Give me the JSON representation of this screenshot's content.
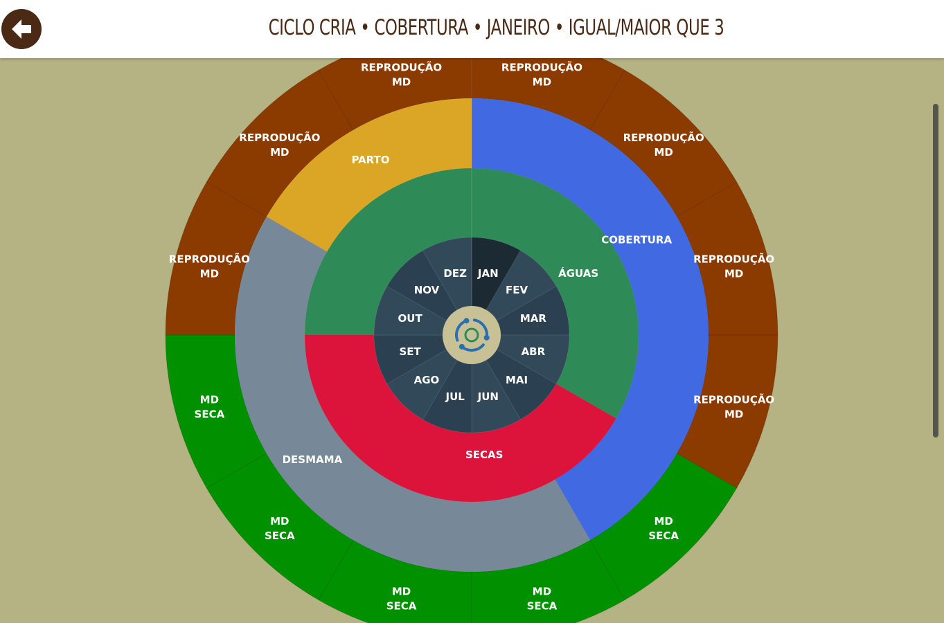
{
  "header": {
    "title": "CICLO CRIA • COBERTURA • JANEIRO • IGUAL/MAIOR QUE 3",
    "back_icon": "arrow-left-icon"
  },
  "center_icon": "cycle-icon",
  "colors": {
    "background": "#b5b283",
    "header_bg": "#ffffff",
    "title": "#4a2a15",
    "reproducao": "#8b3a00",
    "md_seca": "#009000",
    "parto": "#dba526",
    "cobertura": "#4169e1",
    "desmama": "#778899",
    "aguas": "#2e8b57",
    "secas": "#dc143c",
    "months": "#2f4858",
    "month_selected": "#1c2a33",
    "center": "#c8c196"
  },
  "outer_ring": [
    {
      "line1": "REPRODUÇÃO",
      "line2": "MD",
      "type": "reproducao"
    },
    {
      "line1": "REPRODUÇÃO",
      "line2": "MD",
      "type": "reproducao"
    },
    {
      "line1": "REPRODUÇÃO",
      "line2": "MD",
      "type": "reproducao"
    },
    {
      "line1": "REPRODUÇÃO",
      "line2": "MD",
      "type": "reproducao"
    },
    {
      "line1": "MD",
      "line2": "SECA",
      "type": "md_seca"
    },
    {
      "line1": "MD",
      "line2": "SECA",
      "type": "md_seca"
    },
    {
      "line1": "MD",
      "line2": "SECA",
      "type": "md_seca"
    },
    {
      "line1": "MD",
      "line2": "SECA",
      "type": "md_seca"
    },
    {
      "line1": "MD",
      "line2": "SECA",
      "type": "md_seca"
    },
    {
      "line1": "REPRODUÇÃO",
      "line2": "MD",
      "type": "reproducao"
    },
    {
      "line1": "REPRODUÇÃO",
      "line2": "MD",
      "type": "reproducao"
    },
    {
      "line1": "REPRODUÇÃO",
      "line2": "MD",
      "type": "reproducao"
    }
  ],
  "phase_ring": [
    {
      "label": "COBERTURA",
      "start_month": 0,
      "months": 5,
      "type": "cobertura"
    },
    {
      "label": "DESMAMA",
      "start_month": 5,
      "months": 5,
      "type": "desmama"
    },
    {
      "label": "PARTO",
      "start_month": 10,
      "months": 2,
      "type": "parto"
    }
  ],
  "season_ring": [
    {
      "label": "ÁGUAS",
      "start_month": 0,
      "months": 4,
      "type": "aguas"
    },
    {
      "label": "SECAS",
      "start_month": 4,
      "months": 5,
      "type": "secas"
    },
    {
      "label": "",
      "start_month": 9,
      "months": 3,
      "type": "aguas"
    }
  ],
  "months": [
    "JAN",
    "FEV",
    "MAR",
    "ABR",
    "MAI",
    "JUN",
    "JUL",
    "AGO",
    "SET",
    "OUT",
    "NOV",
    "DEZ"
  ],
  "selected_month": 0
}
